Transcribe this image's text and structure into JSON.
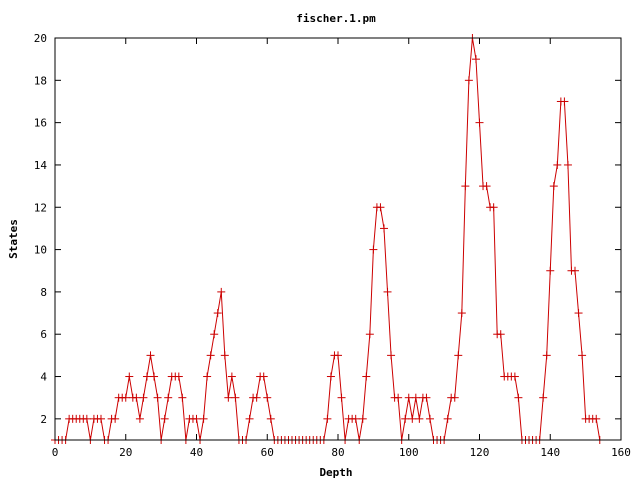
{
  "chart_data": {
    "type": "line",
    "title": "fischer.1.pm",
    "xlabel": "Depth",
    "ylabel": "States",
    "xlim": [
      0,
      160
    ],
    "ylim": [
      1,
      20
    ],
    "xticks": [
      0,
      20,
      40,
      60,
      80,
      100,
      120,
      140,
      160
    ],
    "yticks": [
      2,
      4,
      6,
      8,
      10,
      12,
      14,
      16,
      18,
      20
    ],
    "grid": false,
    "legend": "none",
    "marker": "+",
    "line_color": "#cc0000",
    "series": [
      {
        "x": [
          0,
          1,
          2,
          3,
          4,
          5,
          6,
          7,
          8,
          9,
          10,
          11,
          12,
          13,
          14,
          15,
          16,
          17,
          18,
          19,
          20,
          21,
          22,
          23,
          24,
          25,
          26,
          27,
          28,
          29,
          30,
          31,
          32,
          33,
          34,
          35,
          36,
          37,
          38,
          39,
          40,
          41,
          42,
          43,
          44,
          45,
          46,
          47,
          48,
          49,
          50,
          51,
          52,
          53,
          54,
          55,
          56,
          57,
          58,
          59,
          60,
          61,
          62,
          63,
          64,
          65,
          66,
          67,
          68,
          69,
          70,
          71,
          72,
          73,
          74,
          75,
          76,
          77,
          78,
          79,
          80,
          81,
          82,
          83,
          84,
          85,
          86,
          87,
          88,
          89,
          90,
          91,
          92,
          93,
          94,
          95,
          96,
          97,
          98,
          99,
          100,
          101,
          102,
          103,
          104,
          105,
          106,
          107,
          108,
          109,
          110,
          111,
          112,
          113,
          114,
          115,
          116,
          117,
          118,
          119,
          120,
          121,
          122,
          123,
          124,
          125,
          126,
          127,
          128,
          129,
          130,
          131,
          132,
          133,
          134,
          135,
          136,
          137,
          138,
          139,
          140,
          141,
          142,
          143,
          144,
          145,
          146,
          147,
          148,
          149,
          150,
          151,
          152,
          153,
          154
        ],
        "y": [
          1,
          1,
          1,
          1,
          2,
          2,
          2,
          2,
          2,
          2,
          1,
          2,
          2,
          2,
          1,
          1,
          2,
          2,
          3,
          3,
          3,
          4,
          3,
          3,
          2,
          3,
          4,
          5,
          4,
          3,
          1,
          2,
          3,
          4,
          4,
          4,
          3,
          1,
          2,
          2,
          2,
          1,
          2,
          4,
          5,
          6,
          7,
          8,
          5,
          3,
          4,
          3,
          1,
          1,
          1,
          2,
          3,
          3,
          4,
          4,
          3,
          2,
          1,
          1,
          1,
          1,
          1,
          1,
          1,
          1,
          1,
          1,
          1,
          1,
          1,
          1,
          1,
          2,
          4,
          5,
          5,
          3,
          1,
          2,
          2,
          2,
          1,
          2,
          4,
          6,
          10,
          12,
          12,
          11,
          8,
          5,
          3,
          3,
          1,
          2,
          3,
          2,
          3,
          2,
          3,
          3,
          2,
          1,
          1,
          1,
          1,
          2,
          3,
          3,
          5,
          7,
          13,
          18,
          20,
          19,
          16,
          13,
          13,
          12,
          12,
          6,
          6,
          4,
          4,
          4,
          4,
          3,
          1,
          1,
          1,
          1,
          1,
          1,
          3,
          5,
          9,
          13,
          14,
          17,
          17,
          14,
          9,
          9,
          7,
          5,
          2,
          2,
          2,
          2,
          1
        ]
      }
    ]
  }
}
